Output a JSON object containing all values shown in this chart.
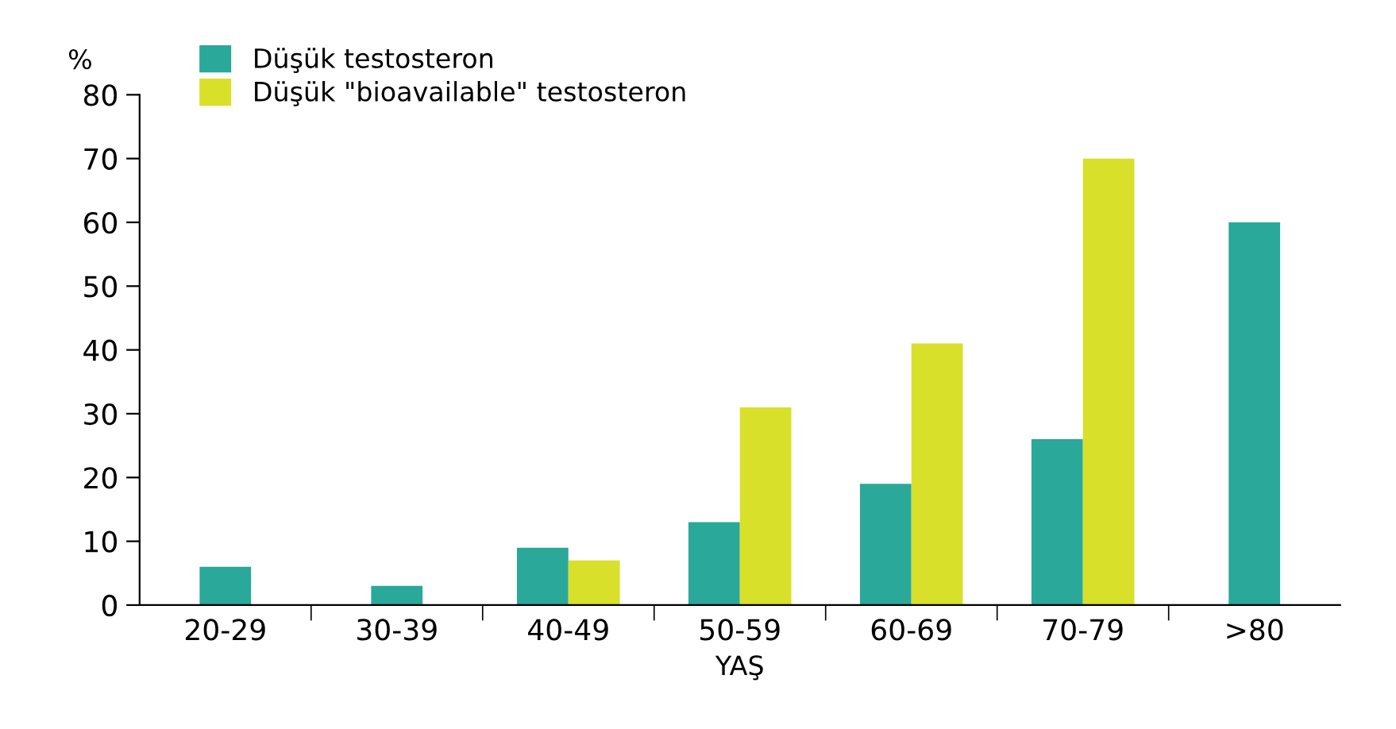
{
  "chart_data": {
    "type": "bar",
    "ylabel": "%",
    "xlabel": "YAŞ",
    "categories": [
      "20-29",
      "30-39",
      "40-49",
      "50-59",
      "60-69",
      "70-79",
      ">80"
    ],
    "series": [
      {
        "name": "Düşük testosteron",
        "color": "#2aa89a",
        "values": [
          6,
          3,
          9,
          13,
          19,
          26,
          60
        ]
      },
      {
        "name": "Düşük \"bioavailable\" testosteron",
        "color": "#d8e02a",
        "values": [
          null,
          null,
          7,
          31,
          41,
          70,
          null
        ]
      }
    ],
    "ylim": [
      0,
      80
    ],
    "yticks": [
      0,
      10,
      20,
      30,
      40,
      50,
      60,
      70,
      80
    ],
    "grid": false,
    "legend": "top left"
  }
}
